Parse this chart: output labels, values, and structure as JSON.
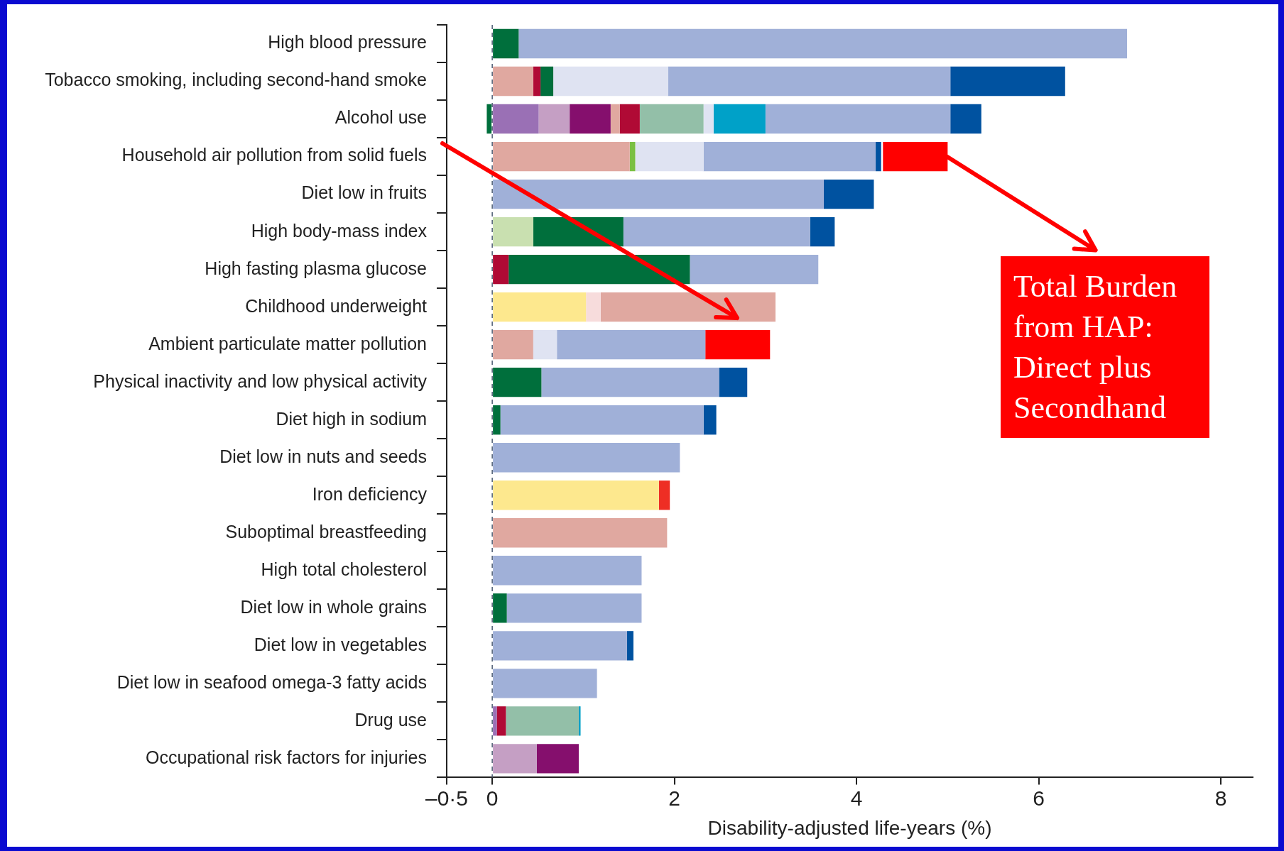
{
  "chart_data": {
    "type": "bar",
    "orientation": "horizontal",
    "stacked": true,
    "xlabel": "Disability-adjusted life-years (%)",
    "categories": [
      "High blood pressure",
      "Tobacco smoking, including second-hand smoke",
      "Alcohol use",
      "Household air pollution from solid fuels",
      "Diet low in fruits",
      "High body-mass index",
      "High fasting plasma glucose",
      "Childhood underweight",
      "Ambient particulate matter pollution",
      "Physical inactivity and low physical activity",
      "Diet high in sodium",
      "Diet low in nuts and seeds",
      "Iron deficiency",
      "Suboptimal breastfeeding",
      "High total cholesterol",
      "Diet low in whole grains",
      "Diet low in vegetables",
      "Diet low in seafood omega-3 fatty acids",
      "Drug use",
      "Occupational risk factors for injuries"
    ],
    "series": [
      {
        "color": "#fde88e",
        "values": [
          null,
          null,
          null,
          null,
          null,
          null,
          null,
          1.03,
          null,
          null,
          null,
          null,
          1.83,
          null,
          null,
          null,
          null,
          null,
          null,
          null
        ]
      },
      {
        "color": "#f7dcdc",
        "values": [
          null,
          null,
          null,
          null,
          null,
          null,
          null,
          0.16,
          null,
          null,
          null,
          null,
          null,
          null,
          null,
          null,
          null,
          null,
          null,
          null
        ]
      },
      {
        "color": "#9a70b5",
        "values": [
          null,
          null,
          0.51,
          null,
          null,
          null,
          null,
          null,
          null,
          null,
          null,
          null,
          null,
          null,
          null,
          null,
          null,
          null,
          0.05,
          null
        ]
      },
      {
        "color": "#c59fc4",
        "values": [
          null,
          null,
          0.34,
          null,
          null,
          null,
          null,
          null,
          null,
          null,
          null,
          null,
          null,
          null,
          null,
          null,
          null,
          null,
          null,
          0.49
        ]
      },
      {
        "color": "#850f6d",
        "values": [
          null,
          null,
          0.45,
          null,
          null,
          null,
          null,
          null,
          null,
          null,
          null,
          null,
          null,
          null,
          null,
          null,
          null,
          null,
          null,
          0.46
        ]
      },
      {
        "color": "#e0a8a0",
        "values": [
          null,
          0.45,
          0.1,
          1.51,
          null,
          null,
          null,
          1.92,
          0.45,
          null,
          null,
          null,
          null,
          1.92,
          null,
          null,
          null,
          null,
          null,
          null
        ]
      },
      {
        "color": "#b00a35",
        "values": [
          null,
          0.08,
          0.22,
          null,
          null,
          null,
          0.18,
          null,
          null,
          null,
          null,
          null,
          null,
          null,
          null,
          null,
          null,
          null,
          0.1,
          null
        ]
      },
      {
        "color": "#ee2e24",
        "values": [
          null,
          null,
          null,
          null,
          null,
          null,
          null,
          null,
          null,
          null,
          null,
          null,
          0.12,
          null,
          null,
          null,
          null,
          null,
          null,
          null
        ]
      },
      {
        "color": "#c9e0b0",
        "values": [
          null,
          null,
          null,
          null,
          null,
          0.45,
          null,
          null,
          null,
          null,
          null,
          null,
          null,
          null,
          null,
          null,
          null,
          null,
          null,
          null
        ]
      },
      {
        "color": "#006f3c",
        "values": [
          0.29,
          0.14,
          -0.06,
          null,
          null,
          0.99,
          1.99,
          null,
          null,
          0.54,
          0.09,
          null,
          null,
          null,
          null,
          0.16,
          null,
          null,
          null,
          null
        ]
      },
      {
        "color": "#93bfa8",
        "values": [
          null,
          null,
          0.7,
          null,
          null,
          null,
          null,
          null,
          null,
          null,
          null,
          null,
          null,
          null,
          null,
          null,
          null,
          null,
          0.8,
          null
        ]
      },
      {
        "color": "#7bc043",
        "values": [
          null,
          null,
          null,
          0.06,
          null,
          null,
          null,
          null,
          null,
          null,
          null,
          null,
          null,
          null,
          null,
          null,
          null,
          null,
          null,
          null
        ]
      },
      {
        "color": "#dfe3f2",
        "values": [
          null,
          1.26,
          0.11,
          0.75,
          null,
          null,
          null,
          null,
          0.26,
          null,
          null,
          null,
          null,
          null,
          null,
          null,
          null,
          null,
          null,
          null
        ]
      },
      {
        "color": "#00a1c8",
        "values": [
          null,
          null,
          0.57,
          null,
          null,
          null,
          null,
          null,
          null,
          null,
          null,
          null,
          null,
          null,
          null,
          null,
          null,
          null,
          0.02,
          null
        ]
      },
      {
        "color": "#a0b0d8",
        "values": [
          6.68,
          3.1,
          2.03,
          1.89,
          3.64,
          2.05,
          1.41,
          null,
          1.63,
          1.95,
          2.23,
          2.06,
          null,
          null,
          1.64,
          1.48,
          1.48,
          1.15,
          null,
          null
        ]
      },
      {
        "color": "#0052a0",
        "values": [
          null,
          1.26,
          0.34,
          0.06,
          0.55,
          0.27,
          null,
          null,
          null,
          0.31,
          0.14,
          null,
          null,
          null,
          null,
          null,
          0.07,
          null,
          null,
          null
        ]
      },
      {
        "color": "#ff0000",
        "base": [
          null,
          null,
          null,
          4.29,
          null,
          null,
          null,
          null,
          2.34,
          null,
          null,
          null,
          null,
          null,
          null,
          null,
          null,
          null,
          null,
          null
        ],
        "values": [
          null,
          null,
          null,
          0.71,
          null,
          null,
          null,
          null,
          0.71,
          null,
          null,
          null,
          null,
          null,
          null,
          null,
          null,
          null,
          null,
          null
        ]
      }
    ],
    "xlim": [
      -0.5,
      8.35
    ],
    "xticks": [
      {
        "value": -0.5,
        "label": "–0·5"
      },
      0,
      2,
      4,
      6,
      8
    ],
    "grid": false,
    "legend": false,
    "ref_lines": [
      {
        "axis": "x",
        "value": 0,
        "color": "#4a5a70",
        "line_style": "dashed"
      }
    ],
    "annotations": [
      {
        "text": "Total Burden from HAP: Direct plus Secondhand",
        "x": 5.0,
        "y": "Household air pollution from solid fuels"
      }
    ]
  }
}
